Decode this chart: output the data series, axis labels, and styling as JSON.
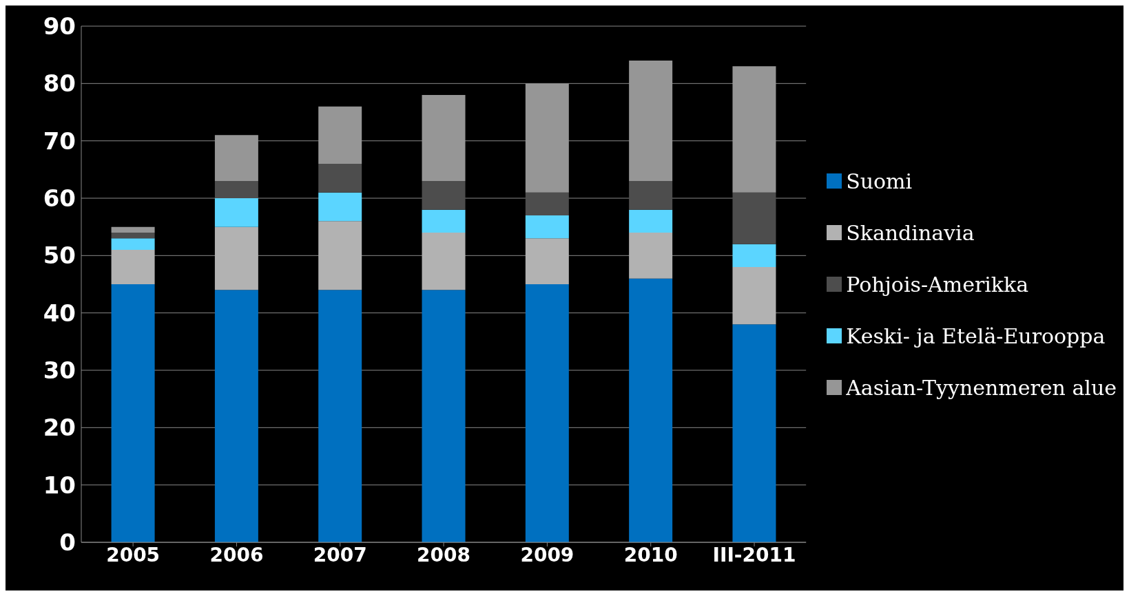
{
  "chart_data": {
    "type": "bar",
    "stacked": true,
    "categories": [
      "2005",
      "2006",
      "2007",
      "2008",
      "2009",
      "2010",
      "III-2011"
    ],
    "series": [
      {
        "name": "Suomi",
        "color": "#0070c0",
        "values": [
          45,
          44,
          44,
          44,
          45,
          46,
          38
        ]
      },
      {
        "name": "Skandinavia",
        "color": "#b2b2b2",
        "values": [
          6,
          11,
          12,
          10,
          8,
          8,
          10
        ]
      },
      {
        "name": "Keski- ja Etelä-Eurooppa",
        "color": "#5bd5ff",
        "values": [
          2,
          5,
          5,
          4,
          4,
          4,
          4
        ]
      },
      {
        "name": "Pohjois-Amerikka",
        "color": "#4d4d4d",
        "values": [
          1,
          3,
          5,
          5,
          4,
          5,
          9
        ]
      },
      {
        "name": "Aasian-Tyynenmeren alue",
        "color": "#969696",
        "values": [
          1,
          8,
          10,
          15,
          19,
          21,
          22
        ]
      }
    ],
    "ylim": [
      0,
      90
    ],
    "yticks": [
      0,
      10,
      20,
      30,
      40,
      50,
      60,
      70,
      80,
      90
    ],
    "grid": "y",
    "legend": "right"
  }
}
